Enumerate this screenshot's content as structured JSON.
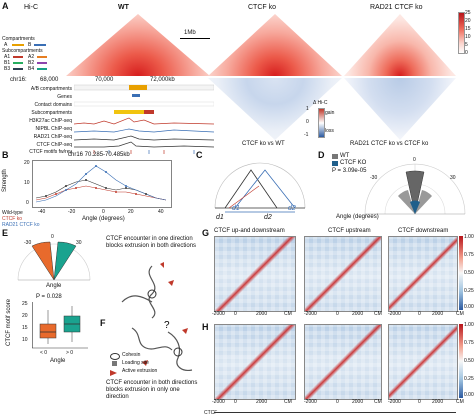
{
  "panelA": {
    "letter": "A",
    "hic_title": "Hi-C",
    "wt": "WT",
    "ctcf_ko": "CTCF ko",
    "rad21_ctcf_ko": "RAD21 CTCF ko",
    "scale": "1Mb",
    "colorbar_ticks": [
      "25",
      "20",
      "15",
      "10",
      "5",
      "0"
    ],
    "legend_compartments": "Compartments",
    "legend_a": "A",
    "legend_b": "B",
    "legend_sub": "Subcompartments",
    "legend_sub_items": [
      "A1",
      "A2",
      "B1",
      "B2",
      "B3",
      "B4"
    ],
    "chr_label": "chr16:",
    "coords": [
      "68,000",
      "70,000",
      "72,000kb"
    ],
    "tracks": [
      "A/B compartments",
      "Genes",
      "Contact domains",
      "Subcompartments",
      "H3K27ac ChIP-seq",
      "NIPBL ChIP-seq",
      "RAD21 ChIP-seq",
      "CTCF ChIP-seq",
      "CTCF motifs fw/rev"
    ],
    "delta_title": "Δ Hi-C",
    "gain": "gain",
    "loss": "loss",
    "delta_ticks": [
      "1",
      "0",
      "-1"
    ],
    "compare_ctcf_wt": "CTCF ko vs WT",
    "compare_rad21": "RAD21 CTCF ko vs CTCF ko"
  },
  "panelB": {
    "letter": "B",
    "title": "chr16 70.285-70.485kb",
    "ylabel": "Strength",
    "xlabel": "Angle (degrees)",
    "legend": [
      "Wild-type",
      "CTCF ko",
      "RAD21 CTCF ko"
    ],
    "colors": [
      "#333333",
      "#c0392b",
      "#3a6fb5"
    ],
    "yticks": [
      "0",
      "10",
      "20"
    ],
    "xticks": [
      "-40",
      "-20",
      "0",
      "20",
      "40"
    ]
  },
  "panelC": {
    "letter": "C",
    "d1": "d1",
    "d2": "d2",
    "d1b": "d1",
    "d2b": "d2"
  },
  "panelD": {
    "letter": "D",
    "legend": [
      "WT",
      "CTCF KO"
    ],
    "pvalue": "P = 3.09e-05",
    "xlabel": "Angle (degrees)",
    "ticks": [
      "-30",
      "0",
      "30"
    ]
  },
  "panelE": {
    "letter": "E",
    "ticks": [
      "-30",
      "0",
      "30"
    ],
    "xlabel": "Angle",
    "pvalue": "P = 0.028",
    "ylabel": "CTCF motif score",
    "yticks": [
      "25",
      "20",
      "15",
      "10"
    ],
    "xcats": [
      "< 0",
      "> 0"
    ],
    "box_colors": [
      "#e86a2c",
      "#1aa38f"
    ]
  },
  "panelF": {
    "letter": "F",
    "top_text": "CTCF encounter in one direction blocks extrusion in both directions",
    "q": "?",
    "legend": [
      "Cohesin",
      "Loading site",
      "Active extrusion"
    ],
    "bottom_text": "CTCF encounter in both directions blocks extrusion in only one direction"
  },
  "panelG": {
    "letter": "G",
    "titles": [
      "CTCF up-and downstream",
      "CTCF upstream",
      "CTCF downstream"
    ],
    "xticks": [
      "-2000",
      "-1000",
      "0",
      "1000",
      "2000"
    ],
    "cm": "CM",
    "cb_ticks": [
      "1.00",
      "0.75",
      "0.50",
      "0.25",
      "0.00"
    ]
  },
  "panelH": {
    "letter": "H",
    "xticks": [
      "-2000",
      "-1000",
      "0",
      "1000",
      "2000"
    ],
    "cm": "CM",
    "ctcf": "CTCF",
    "cb_ticks": [
      "1.00",
      "0.75",
      "0.50",
      "0.25",
      "0.00"
    ]
  }
}
